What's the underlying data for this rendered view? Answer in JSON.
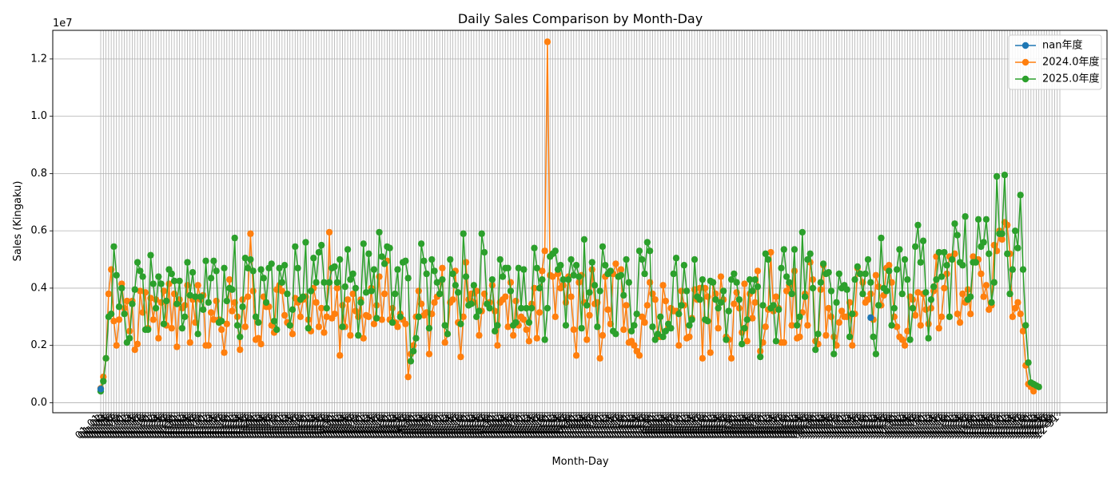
{
  "chart_data": {
    "type": "line",
    "title": "Daily Sales Comparison by Month-Day",
    "xlabel": "Month-Day",
    "ylabel": "Sales (Kingaku)",
    "y_scale_label": "1e7",
    "ylim": [
      -0.035,
      1.3
    ],
    "y_ticks": [
      "0.0",
      "0.2",
      "0.4",
      "0.6",
      "0.8",
      "1.0",
      "1.2"
    ],
    "x_tick_label_shape": "MM-DD",
    "grid": true,
    "legend_position": "upper right",
    "x_count": 366,
    "series": [
      {
        "name": "nan年度",
        "color": "#1f77b4",
        "points": [
          [
            0,
            0.048
          ],
          [
            293,
            0.297
          ]
        ]
      },
      {
        "name": "2024.0年度",
        "color": "#ff7f0e",
        "values": [
          0.05,
          0.09,
          0.155,
          0.38,
          0.465,
          0.285,
          0.2,
          0.29,
          0.415,
          0.33,
          0.355,
          0.25,
          0.355,
          0.185,
          0.205,
          0.39,
          0.315,
          0.385,
          0.26,
          0.365,
          0.29,
          0.36,
          0.225,
          0.35,
          0.39,
          0.27,
          0.415,
          0.26,
          0.38,
          0.195,
          0.36,
          0.33,
          0.34,
          0.41,
          0.21,
          0.36,
          0.28,
          0.41,
          0.36,
          0.375,
          0.2,
          0.2,
          0.315,
          0.29,
          0.355,
          0.29,
          0.255,
          0.175,
          0.275,
          0.43,
          0.32,
          0.35,
          0.3,
          0.185,
          0.36,
          0.265,
          0.37,
          0.59,
          0.39,
          0.22,
          0.225,
          0.205,
          0.37,
          0.335,
          0.335,
          0.27,
          0.245,
          0.395,
          0.41,
          0.39,
          0.305,
          0.28,
          0.27,
          0.24,
          0.365,
          0.35,
          0.3,
          0.36,
          0.37,
          0.29,
          0.25,
          0.4,
          0.35,
          0.265,
          0.33,
          0.245,
          0.3,
          0.595,
          0.295,
          0.31,
          0.4,
          0.165,
          0.34,
          0.265,
          0.36,
          0.235,
          0.38,
          0.32,
          0.3,
          0.36,
          0.225,
          0.305,
          0.3,
          0.4,
          0.275,
          0.34,
          0.44,
          0.29,
          0.38,
          0.495,
          0.29,
          0.33,
          0.28,
          0.265,
          0.31,
          0.29,
          0.275,
          0.09,
          0.17,
          0.2,
          0.3,
          0.39,
          0.345,
          0.305,
          0.315,
          0.17,
          0.31,
          0.35,
          0.37,
          0.38,
          0.47,
          0.21,
          0.24,
          0.35,
          0.36,
          0.46,
          0.28,
          0.16,
          0.3,
          0.49,
          0.36,
          0.38,
          0.35,
          0.39,
          0.235,
          0.32,
          0.38,
          0.345,
          0.35,
          0.41,
          0.32,
          0.2,
          0.35,
          0.36,
          0.37,
          0.265,
          0.42,
          0.235,
          0.355,
          0.27,
          0.3,
          0.29,
          0.255,
          0.215,
          0.345,
          0.4,
          0.225,
          0.315,
          0.46,
          0.53,
          1.26,
          0.445,
          0.44,
          0.3,
          0.45,
          0.4,
          0.41,
          0.35,
          0.44,
          0.37,
          0.255,
          0.165,
          0.42,
          0.445,
          0.35,
          0.22,
          0.305,
          0.465,
          0.345,
          0.35,
          0.155,
          0.235,
          0.44,
          0.325,
          0.275,
          0.45,
          0.485,
          0.44,
          0.465,
          0.255,
          0.34,
          0.21,
          0.215,
          0.2,
          0.18,
          0.165,
          0.3,
          0.28,
          0.34,
          0.42,
          0.38,
          0.36,
          0.23,
          0.23,
          0.41,
          0.355,
          0.265,
          0.33,
          0.32,
          0.32,
          0.2,
          0.39,
          0.34,
          0.225,
          0.23,
          0.295,
          0.395,
          0.36,
          0.4,
          0.155,
          0.4,
          0.37,
          0.175,
          0.42,
          0.38,
          0.26,
          0.44,
          0.36,
          0.23,
          0.22,
          0.155,
          0.345,
          0.385,
          0.33,
          0.245,
          0.415,
          0.215,
          0.38,
          0.295,
          0.35,
          0.46,
          0.18,
          0.21,
          0.265,
          0.325,
          0.525,
          0.32,
          0.37,
          0.33,
          0.21,
          0.21,
          0.39,
          0.41,
          0.27,
          0.46,
          0.225,
          0.23,
          0.315,
          0.38,
          0.27,
          0.49,
          0.43,
          0.215,
          0.205,
          0.395,
          0.48,
          0.235,
          0.33,
          0.3,
          0.23,
          0.2,
          0.28,
          0.32,
          0.3,
          0.3,
          0.35,
          0.2,
          0.31,
          0.47,
          0.45,
          0.42,
          0.35,
          0.36,
          0.38,
          0.29,
          0.445,
          0.405,
          0.34,
          0.375,
          0.47,
          0.48,
          0.42,
          0.3,
          0.265,
          0.23,
          0.22,
          0.2,
          0.25,
          0.37,
          0.36,
          0.305,
          0.385,
          0.27,
          0.38,
          0.325,
          0.275,
          0.33,
          0.39,
          0.51,
          0.26,
          0.3,
          0.4,
          0.45,
          0.51,
          0.51,
          0.52,
          0.31,
          0.28,
          0.38,
          0.35,
          0.395,
          0.31,
          0.51,
          0.5,
          0.5,
          0.45,
          0.37,
          0.41,
          0.325,
          0.34,
          0.55,
          0.53,
          0.6,
          0.57,
          0.63,
          0.62,
          0.52,
          0.3,
          0.33,
          0.35,
          0.31,
          0.25,
          0.13,
          0.065,
          0.055,
          0.04
        ]
      },
      {
        "name": "2025.0年度",
        "color": "#2ca02c",
        "values": [
          0.04,
          0.075,
          0.155,
          0.3,
          0.31,
          0.545,
          0.445,
          0.335,
          0.4,
          0.31,
          0.21,
          0.225,
          0.345,
          0.395,
          0.49,
          0.46,
          0.44,
          0.255,
          0.255,
          0.515,
          0.415,
          0.33,
          0.44,
          0.415,
          0.275,
          0.355,
          0.465,
          0.45,
          0.425,
          0.345,
          0.425,
          0.26,
          0.3,
          0.49,
          0.375,
          0.455,
          0.37,
          0.24,
          0.37,
          0.325,
          0.495,
          0.35,
          0.435,
          0.495,
          0.46,
          0.28,
          0.285,
          0.47,
          0.355,
          0.4,
          0.395,
          0.575,
          0.27,
          0.23,
          0.335,
          0.505,
          0.47,
          0.5,
          0.46,
          0.3,
          0.28,
          0.465,
          0.435,
          0.35,
          0.47,
          0.485,
          0.285,
          0.255,
          0.47,
          0.42,
          0.48,
          0.38,
          0.27,
          0.325,
          0.545,
          0.47,
          0.36,
          0.37,
          0.56,
          0.26,
          0.39,
          0.505,
          0.42,
          0.525,
          0.55,
          0.42,
          0.33,
          0.42,
          0.47,
          0.475,
          0.42,
          0.5,
          0.265,
          0.405,
          0.535,
          0.43,
          0.45,
          0.4,
          0.235,
          0.35,
          0.555,
          0.385,
          0.52,
          0.39,
          0.465,
          0.295,
          0.595,
          0.51,
          0.485,
          0.545,
          0.54,
          0.28,
          0.38,
          0.465,
          0.3,
          0.49,
          0.495,
          0.435,
          0.145,
          0.18,
          0.225,
          0.3,
          0.555,
          0.495,
          0.45,
          0.26,
          0.5,
          0.46,
          0.42,
          0.38,
          0.43,
          0.27,
          0.24,
          0.5,
          0.45,
          0.41,
          0.385,
          0.275,
          0.59,
          0.44,
          0.34,
          0.345,
          0.41,
          0.3,
          0.32,
          0.59,
          0.525,
          0.345,
          0.33,
          0.43,
          0.25,
          0.27,
          0.5,
          0.44,
          0.47,
          0.47,
          0.39,
          0.27,
          0.28,
          0.47,
          0.33,
          0.465,
          0.33,
          0.28,
          0.33,
          0.54,
          0.47,
          0.4,
          0.43,
          0.22,
          0.33,
          0.51,
          0.52,
          0.53,
          0.465,
          0.48,
          0.43,
          0.27,
          0.43,
          0.5,
          0.445,
          0.48,
          0.44,
          0.26,
          0.57,
          0.34,
          0.385,
          0.49,
          0.41,
          0.265,
          0.39,
          0.545,
          0.48,
          0.45,
          0.46,
          0.25,
          0.24,
          0.44,
          0.445,
          0.375,
          0.5,
          0.42,
          0.25,
          0.27,
          0.31,
          0.53,
          0.5,
          0.45,
          0.56,
          0.53,
          0.265,
          0.22,
          0.24,
          0.3,
          0.23,
          0.25,
          0.275,
          0.26,
          0.45,
          0.505,
          0.31,
          0.34,
          0.48,
          0.39,
          0.27,
          0.29,
          0.5,
          0.37,
          0.36,
          0.43,
          0.29,
          0.285,
          0.425,
          0.42,
          0.36,
          0.33,
          0.35,
          0.39,
          0.22,
          0.32,
          0.43,
          0.45,
          0.42,
          0.36,
          0.205,
          0.26,
          0.29,
          0.43,
          0.39,
          0.43,
          0.405,
          0.16,
          0.34,
          0.52,
          0.5,
          0.33,
          0.34,
          0.215,
          0.325,
          0.47,
          0.535,
          0.44,
          0.42,
          0.38,
          0.535,
          0.27,
          0.3,
          0.595,
          0.37,
          0.5,
          0.52,
          0.4,
          0.185,
          0.24,
          0.42,
          0.485,
          0.45,
          0.455,
          0.39,
          0.17,
          0.35,
          0.45,
          0.4,
          0.41,
          0.395,
          0.23,
          0.31,
          0.43,
          0.475,
          0.45,
          0.38,
          0.45,
          0.5,
          0.42,
          0.23,
          0.17,
          0.34,
          0.575,
          0.4,
          0.39,
          0.46,
          0.27,
          0.33,
          0.465,
          0.535,
          0.38,
          0.5,
          0.43,
          0.22,
          0.33,
          0.545,
          0.62,
          0.49,
          0.565,
          0.385,
          0.225,
          0.36,
          0.405,
          0.43,
          0.525,
          0.44,
          0.525,
          0.48,
          0.3,
          0.5,
          0.625,
          0.585,
          0.49,
          0.48,
          0.65,
          0.36,
          0.37,
          0.49,
          0.49,
          0.64,
          0.545,
          0.56,
          0.64,
          0.52,
          0.35,
          0.42,
          0.79,
          0.59,
          0.59,
          0.795,
          0.52,
          0.38,
          0.465,
          0.6,
          0.54,
          0.725,
          0.465,
          0.27,
          0.14,
          0.07,
          0.065,
          0.06,
          0.055
        ]
      }
    ]
  }
}
